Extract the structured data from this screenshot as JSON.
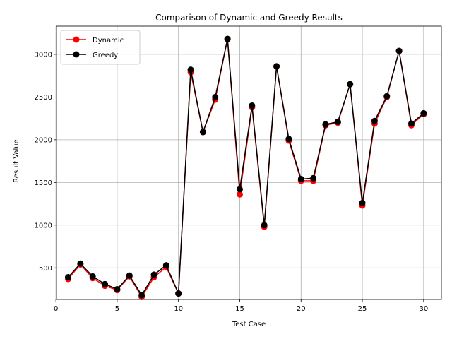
{
  "chart_data": {
    "type": "line",
    "title": "Comparison of Dynamic and Greedy Results",
    "xlabel": "Test Case",
    "ylabel": "Result Value",
    "xlim": [
      0.05,
      31.45
    ],
    "ylim": [
      130,
      3330
    ],
    "xticks": [
      0,
      5,
      10,
      15,
      20,
      25,
      30
    ],
    "yticks": [
      500,
      1000,
      1500,
      2000,
      2500,
      3000
    ],
    "grid": true,
    "legend": "top-left",
    "x": [
      1,
      2,
      3,
      4,
      5,
      6,
      7,
      8,
      9,
      10,
      11,
      12,
      13,
      14,
      15,
      16,
      17,
      18,
      19,
      20,
      21,
      22,
      23,
      24,
      25,
      26,
      27,
      28,
      29,
      30
    ],
    "series": [
      {
        "name": "Dynamic",
        "color": "#ff0000",
        "values": [
          370,
          540,
          380,
          290,
          240,
          400,
          160,
          390,
          510,
          200,
          2790,
          2090,
          2470,
          3180,
          1360,
          2380,
          980,
          2860,
          1990,
          1520,
          1520,
          2170,
          2200,
          2650,
          1230,
          2190,
          2500,
          3040,
          2170,
          2300
        ]
      },
      {
        "name": "Greedy",
        "color": "#000000",
        "values": [
          390,
          550,
          400,
          310,
          250,
          410,
          180,
          420,
          530,
          200,
          2820,
          2090,
          2500,
          3180,
          1420,
          2400,
          1000,
          2860,
          2010,
          1540,
          1550,
          2180,
          2210,
          2650,
          1260,
          2220,
          2510,
          3040,
          2190,
          2310
        ]
      }
    ]
  }
}
